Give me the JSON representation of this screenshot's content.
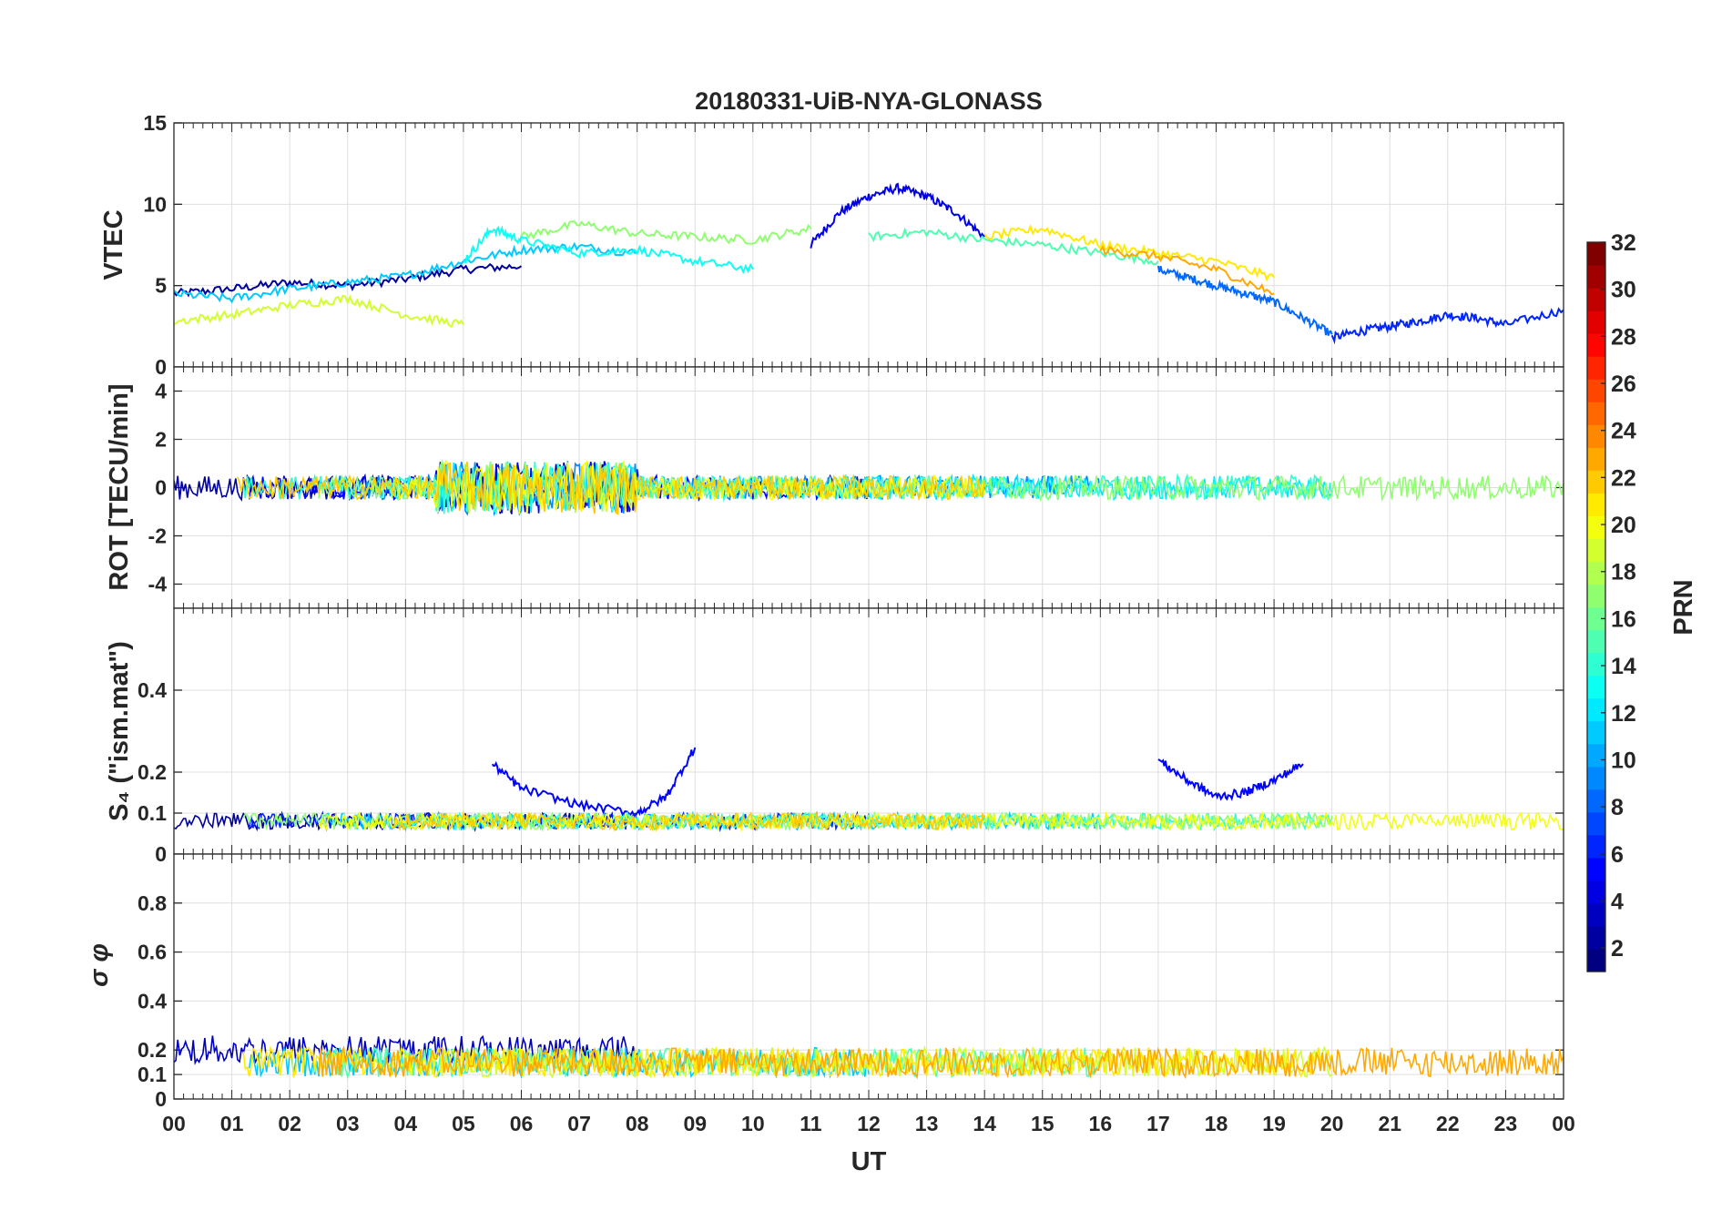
{
  "chart_data": {
    "type": "line",
    "title": "20180331-UiB-NYA-GLONASS",
    "xlabel": "UT",
    "x_ticks": [
      "00",
      "01",
      "02",
      "03",
      "04",
      "05",
      "06",
      "07",
      "08",
      "09",
      "10",
      "11",
      "12",
      "13",
      "14",
      "15",
      "16",
      "17",
      "18",
      "19",
      "20",
      "21",
      "22",
      "23",
      "00"
    ],
    "xlim": [
      0,
      24
    ],
    "colorbar": {
      "label": "PRN",
      "colormap": "jet",
      "range": [
        1,
        32
      ],
      "ticks": [
        "2",
        "4",
        "6",
        "8",
        "10",
        "12",
        "14",
        "16",
        "18",
        "20",
        "22",
        "24",
        "26",
        "28",
        "30",
        "32"
      ]
    },
    "panels": [
      {
        "ylabel": "VTEC",
        "ylim": [
          0,
          15
        ],
        "y_ticks": [
          "0",
          "5",
          "10",
          "15"
        ],
        "series": [
          {
            "prn": 2,
            "x": [
              0,
              1,
              2,
              3,
              4,
              5,
              6
            ],
            "y": [
              4.5,
              4.8,
              5.2,
              5.0,
              5.4,
              6.0,
              6.2
            ]
          },
          {
            "prn": 4,
            "x": [
              11,
              11.5,
              12,
              12.5,
              13,
              13.5,
              14
            ],
            "y": [
              7.5,
              9.5,
              10.5,
              11.0,
              10.5,
              9.5,
              8.0
            ]
          },
          {
            "prn": 6,
            "x": [
              20,
              20.5,
              21,
              21.5,
              22,
              22.5,
              23,
              24
            ],
            "y": [
              1.8,
              2.2,
              2.5,
              2.8,
              3.2,
              3.0,
              2.6,
              3.5
            ]
          },
          {
            "prn": 8,
            "x": [
              17,
              17.5,
              18,
              18.5,
              19,
              19.5,
              20
            ],
            "y": [
              6.0,
              5.5,
              5.0,
              4.5,
              4.0,
              3.0,
              2.0
            ]
          },
          {
            "prn": 11,
            "x": [
              0,
              1,
              2,
              3,
              4,
              5,
              6,
              7,
              8
            ],
            "y": [
              4.5,
              4.2,
              4.8,
              5.2,
              5.6,
              6.5,
              7.2,
              7.4,
              7.0
            ]
          },
          {
            "prn": 13,
            "x": [
              5,
              5.5,
              6,
              7,
              8,
              9,
              10
            ],
            "y": [
              6.5,
              8.5,
              7.8,
              7.0,
              7.2,
              6.5,
              6.0
            ]
          },
          {
            "prn": 15,
            "x": [
              12,
              13,
              14,
              15,
              16,
              17
            ],
            "y": [
              8.0,
              8.3,
              7.8,
              7.5,
              7.0,
              6.5
            ]
          },
          {
            "prn": 17,
            "x": [
              6,
              7,
              8,
              9,
              10,
              11
            ],
            "y": [
              8.0,
              8.8,
              8.2,
              8.0,
              7.8,
              8.5
            ]
          },
          {
            "prn": 19,
            "x": [
              0,
              1,
              2,
              3,
              4,
              5
            ],
            "y": [
              2.8,
              3.2,
              3.8,
              4.2,
              3.2,
              2.6
            ]
          },
          {
            "prn": 21,
            "x": [
              14,
              15,
              16,
              17,
              18,
              19
            ],
            "y": [
              8.0,
              8.5,
              7.5,
              7.0,
              6.5,
              5.5
            ]
          },
          {
            "prn": 23,
            "x": [
              16,
              17,
              18,
              19
            ],
            "y": [
              7.2,
              6.8,
              6.0,
              4.5
            ]
          }
        ]
      },
      {
        "ylabel": "ROT [TECU/min]",
        "ylim": [
          -5,
          5
        ],
        "y_ticks": [
          "-4",
          "-2",
          "0",
          "2",
          "4"
        ]
      },
      {
        "ylabel": "S₄ (\"ism.mat\")",
        "ylim": [
          0,
          0.6
        ],
        "y_ticks": [
          "0",
          "0.1",
          "0.2",
          "0.4"
        ],
        "series": [
          {
            "prn": 5,
            "x": [
              5.5,
              6,
              7,
              8,
              8.5,
              9
            ],
            "y": [
              0.22,
              0.16,
              0.12,
              0.1,
              0.14,
              0.26
            ]
          },
          {
            "prn": 5,
            "x": [
              17,
              17.5,
              18,
              18.5,
              19,
              19.5
            ],
            "y": [
              0.23,
              0.18,
              0.14,
              0.15,
              0.18,
              0.22
            ]
          }
        ]
      },
      {
        "ylabel": "σ φ",
        "ylim": [
          0,
          1
        ],
        "y_ticks": [
          "0",
          "0.1",
          "0.2",
          "0.4",
          "0.6",
          "0.8"
        ]
      }
    ]
  }
}
